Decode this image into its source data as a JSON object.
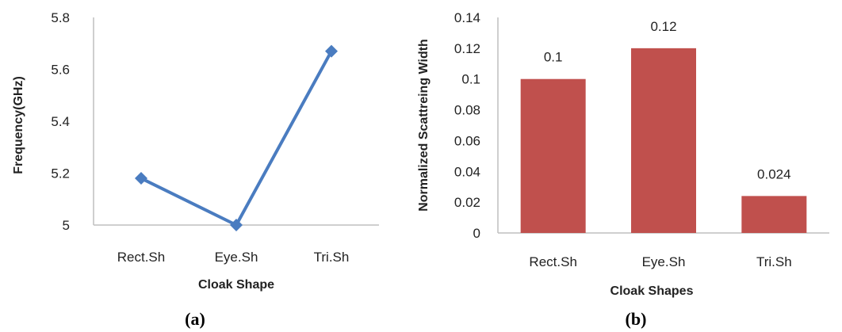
{
  "chart_data": [
    {
      "type": "line",
      "panel_label": "(a)",
      "xlabel": "Cloak Shape",
      "ylabel": "Frequency(GHz)",
      "categories": [
        "Rect.Sh",
        "Eye.Sh",
        "Tri.Sh"
      ],
      "values": [
        5.18,
        5.0,
        5.67
      ],
      "ylim": [
        5,
        5.8
      ],
      "yticks": [
        "5",
        "5.2",
        "5.4",
        "5.6",
        "5.8"
      ],
      "color": "#4a7cc0",
      "grid": false
    },
    {
      "type": "bar",
      "panel_label": "(b)",
      "xlabel": "Cloak Shapes",
      "ylabel": "Normalized Scattreing Width",
      "categories": [
        "Rect.Sh",
        "Eye.Sh",
        "Tri.Sh"
      ],
      "values": [
        0.1,
        0.12,
        0.024
      ],
      "data_labels": [
        "0.1",
        "0.12",
        "0.024"
      ],
      "ylim": [
        0,
        0.14
      ],
      "yticks": [
        "0",
        "0.02",
        "0.04",
        "0.06",
        "0.08",
        "0.1",
        "0.12",
        "0.14"
      ],
      "color": "#c0504d",
      "grid": false
    }
  ]
}
